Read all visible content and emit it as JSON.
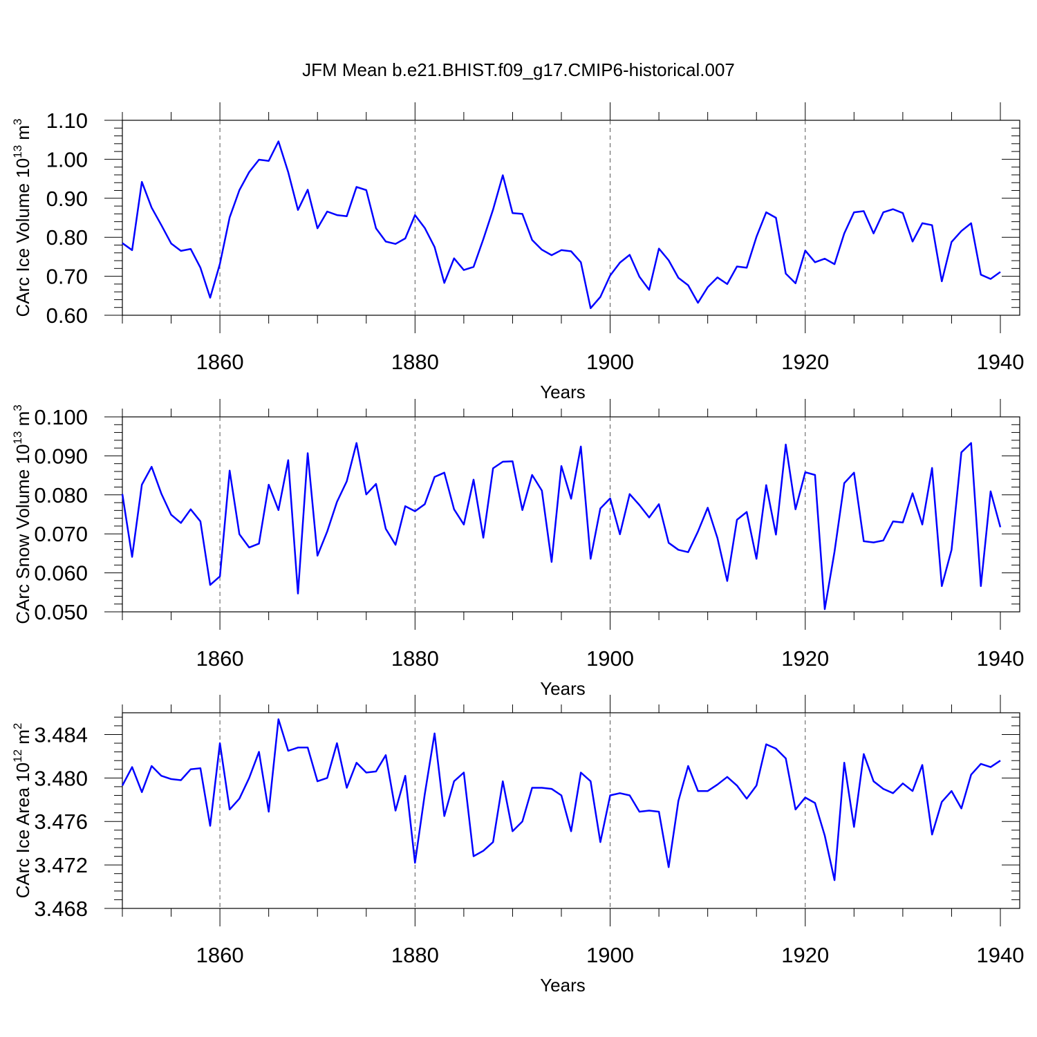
{
  "title": "JFM Mean b.e21.BHIST.f09_g17.CMIP6-historical.007",
  "chart_data": [
    {
      "type": "line",
      "ylabel": "CArc Ice Volume 10",
      "ylabel_exp": "13",
      "ylabel_unit": " m",
      "ylabel_unit_exp": "3",
      "xlabel": "Years",
      "xlim": [
        1850,
        1940
      ],
      "xticks": [
        "1860",
        "1880",
        "1900",
        "1920",
        "1940"
      ],
      "ylim": [
        0.6,
        1.1
      ],
      "yticks": [
        "0.60",
        "0.70",
        "0.80",
        "0.90",
        "1.00",
        "1.10"
      ],
      "grid": "vertical dashed at 1860, 1880, 1900, 1920",
      "series_color": "#0000ff",
      "x": [
        1850,
        1851,
        1852,
        1853,
        1854,
        1855,
        1856,
        1857,
        1858,
        1859,
        1860,
        1861,
        1862,
        1863,
        1864,
        1865,
        1866,
        1867,
        1868,
        1869,
        1870,
        1871,
        1872,
        1873,
        1874,
        1875,
        1876,
        1877,
        1878,
        1879,
        1880,
        1881,
        1882,
        1883,
        1884,
        1885,
        1886,
        1887,
        1888,
        1889,
        1890,
        1891,
        1892,
        1893,
        1894,
        1895,
        1896,
        1897,
        1898,
        1899,
        1900,
        1901,
        1902,
        1903,
        1904,
        1905,
        1906,
        1907,
        1908,
        1909,
        1910,
        1911,
        1912,
        1913,
        1914,
        1915,
        1916,
        1917,
        1918,
        1919,
        1920,
        1921,
        1922,
        1923,
        1924,
        1925,
        1926,
        1927,
        1928,
        1929,
        1930,
        1931,
        1932,
        1933,
        1934,
        1935,
        1936,
        1937,
        1938,
        1939,
        1940
      ],
      "values": [
        0.785,
        0.767,
        0.942,
        0.876,
        0.831,
        0.784,
        0.765,
        0.77,
        0.722,
        0.645,
        0.732,
        0.851,
        0.921,
        0.967,
        0.999,
        0.996,
        1.046,
        0.967,
        0.87,
        0.922,
        0.823,
        0.866,
        0.857,
        0.854,
        0.929,
        0.921,
        0.823,
        0.789,
        0.783,
        0.797,
        0.857,
        0.824,
        0.775,
        0.683,
        0.746,
        0.716,
        0.724,
        0.795,
        0.871,
        0.959,
        0.862,
        0.86,
        0.793,
        0.768,
        0.754,
        0.767,
        0.764,
        0.736,
        0.618,
        0.647,
        0.702,
        0.735,
        0.755,
        0.699,
        0.665,
        0.771,
        0.741,
        0.696,
        0.677,
        0.632,
        0.672,
        0.697,
        0.68,
        0.725,
        0.722,
        0.801,
        0.864,
        0.85,
        0.707,
        0.682,
        0.766,
        0.736,
        0.745,
        0.731,
        0.81,
        0.864,
        0.867,
        0.81,
        0.864,
        0.872,
        0.862,
        0.789,
        0.836,
        0.831,
        0.687,
        0.788,
        0.816,
        0.836,
        0.704,
        0.693,
        0.711
      ]
    },
    {
      "type": "line",
      "ylabel": "CArc Snow Volume 10",
      "ylabel_exp": "13",
      "ylabel_unit": " m",
      "ylabel_unit_exp": "3",
      "xlabel": "Years",
      "xlim": [
        1850,
        1940
      ],
      "xticks": [
        "1860",
        "1880",
        "1900",
        "1920",
        "1940"
      ],
      "ylim": [
        0.05,
        0.1
      ],
      "yticks": [
        "0.050",
        "0.060",
        "0.070",
        "0.080",
        "0.090",
        "0.100"
      ],
      "grid": "vertical dashed at 1860, 1880, 1900, 1920",
      "series_color": "#0000ff",
      "x": [
        1850,
        1851,
        1852,
        1853,
        1854,
        1855,
        1856,
        1857,
        1858,
        1859,
        1860,
        1861,
        1862,
        1863,
        1864,
        1865,
        1866,
        1867,
        1868,
        1869,
        1870,
        1871,
        1872,
        1873,
        1874,
        1875,
        1876,
        1877,
        1878,
        1879,
        1880,
        1881,
        1882,
        1883,
        1884,
        1885,
        1886,
        1887,
        1888,
        1889,
        1890,
        1891,
        1892,
        1893,
        1894,
        1895,
        1896,
        1897,
        1898,
        1899,
        1900,
        1901,
        1902,
        1903,
        1904,
        1905,
        1906,
        1907,
        1908,
        1909,
        1910,
        1911,
        1912,
        1913,
        1914,
        1915,
        1916,
        1917,
        1918,
        1919,
        1920,
        1921,
        1922,
        1923,
        1924,
        1925,
        1926,
        1927,
        1928,
        1929,
        1930,
        1931,
        1932,
        1933,
        1934,
        1935,
        1936,
        1937,
        1938,
        1939,
        1940
      ],
      "values": [
        0.0802,
        0.0641,
        0.0826,
        0.0872,
        0.0803,
        0.0749,
        0.0728,
        0.0763,
        0.0732,
        0.0569,
        0.0591,
        0.0862,
        0.0699,
        0.0665,
        0.0675,
        0.0826,
        0.0761,
        0.0889,
        0.0547,
        0.0907,
        0.0644,
        0.0706,
        0.0782,
        0.0835,
        0.0933,
        0.0801,
        0.0828,
        0.0713,
        0.0672,
        0.0771,
        0.0758,
        0.0776,
        0.0846,
        0.0857,
        0.0763,
        0.0724,
        0.0839,
        0.069,
        0.0868,
        0.0885,
        0.0886,
        0.0761,
        0.0851,
        0.0811,
        0.0628,
        0.0874,
        0.079,
        0.0924,
        0.0636,
        0.0765,
        0.0791,
        0.0699,
        0.0802,
        0.0774,
        0.0742,
        0.0776,
        0.0677,
        0.0659,
        0.0653,
        0.0706,
        0.0767,
        0.0689,
        0.0579,
        0.0736,
        0.0756,
        0.0636,
        0.0825,
        0.0698,
        0.0929,
        0.0763,
        0.0858,
        0.0851,
        0.0507,
        0.0654,
        0.083,
        0.0857,
        0.0681,
        0.0678,
        0.0683,
        0.0732,
        0.0729,
        0.0804,
        0.0724,
        0.0869,
        0.0566,
        0.0659,
        0.0909,
        0.0933,
        0.0566,
        0.0809,
        0.0717
      ]
    },
    {
      "type": "line",
      "ylabel": "CArc Ice Area 10",
      "ylabel_exp": "12",
      "ylabel_unit": " m",
      "ylabel_unit_exp": "2",
      "xlabel": "Years",
      "xlim": [
        1850,
        1940
      ],
      "xticks": [
        "1860",
        "1880",
        "1900",
        "1920",
        "1940"
      ],
      "ylim": [
        3.468,
        3.486
      ],
      "yticks": [
        "3.468",
        "3.472",
        "3.476",
        "3.480",
        "3.484"
      ],
      "ytick_values": [
        3.468,
        3.472,
        3.476,
        3.48,
        3.484
      ],
      "grid": "vertical dashed at 1860, 1880, 1900, 1920",
      "series_color": "#0000ff",
      "x": [
        1850,
        1851,
        1852,
        1853,
        1854,
        1855,
        1856,
        1857,
        1858,
        1859,
        1860,
        1861,
        1862,
        1863,
        1864,
        1865,
        1866,
        1867,
        1868,
        1869,
        1870,
        1871,
        1872,
        1873,
        1874,
        1875,
        1876,
        1877,
        1878,
        1879,
        1880,
        1881,
        1882,
        1883,
        1884,
        1885,
        1886,
        1887,
        1888,
        1889,
        1890,
        1891,
        1892,
        1893,
        1894,
        1895,
        1896,
        1897,
        1898,
        1899,
        1900,
        1901,
        1902,
        1903,
        1904,
        1905,
        1906,
        1907,
        1908,
        1909,
        1910,
        1911,
        1912,
        1913,
        1914,
        1915,
        1916,
        1917,
        1918,
        1919,
        1920,
        1921,
        1922,
        1923,
        1924,
        1925,
        1926,
        1927,
        1928,
        1929,
        1930,
        1931,
        1932,
        1933,
        1934,
        1935,
        1936,
        1937,
        1938,
        1939,
        1940
      ],
      "values": [
        3.4793,
        3.481,
        3.4787,
        3.4811,
        3.4802,
        3.4799,
        3.4798,
        3.4808,
        3.4809,
        3.4756,
        3.4832,
        3.4771,
        3.4781,
        3.48,
        3.4824,
        3.4769,
        3.4854,
        3.4825,
        3.4828,
        3.4828,
        3.4797,
        3.48,
        3.4832,
        3.4791,
        3.4814,
        3.4805,
        3.4806,
        3.4821,
        3.477,
        3.4802,
        3.4722,
        3.4785,
        3.4841,
        3.4765,
        3.4797,
        3.4805,
        3.4728,
        3.4733,
        3.4741,
        3.4797,
        3.4751,
        3.476,
        3.4791,
        3.4791,
        3.479,
        3.4784,
        3.4751,
        3.4805,
        3.4797,
        3.4741,
        3.4784,
        3.4786,
        3.4784,
        3.4769,
        3.477,
        3.4769,
        3.4718,
        3.4779,
        3.4811,
        3.4788,
        3.4788,
        3.4794,
        3.4801,
        3.4793,
        3.4781,
        3.4793,
        3.4831,
        3.4827,
        3.4818,
        3.4771,
        3.4782,
        3.4777,
        3.4747,
        3.4706,
        3.4814,
        3.4755,
        3.4822,
        3.4797,
        3.479,
        3.4786,
        3.4795,
        3.4788,
        3.4812,
        3.4748,
        3.4778,
        3.4788,
        3.4772,
        3.4803,
        3.4813,
        3.481,
        3.4816
      ]
    }
  ]
}
